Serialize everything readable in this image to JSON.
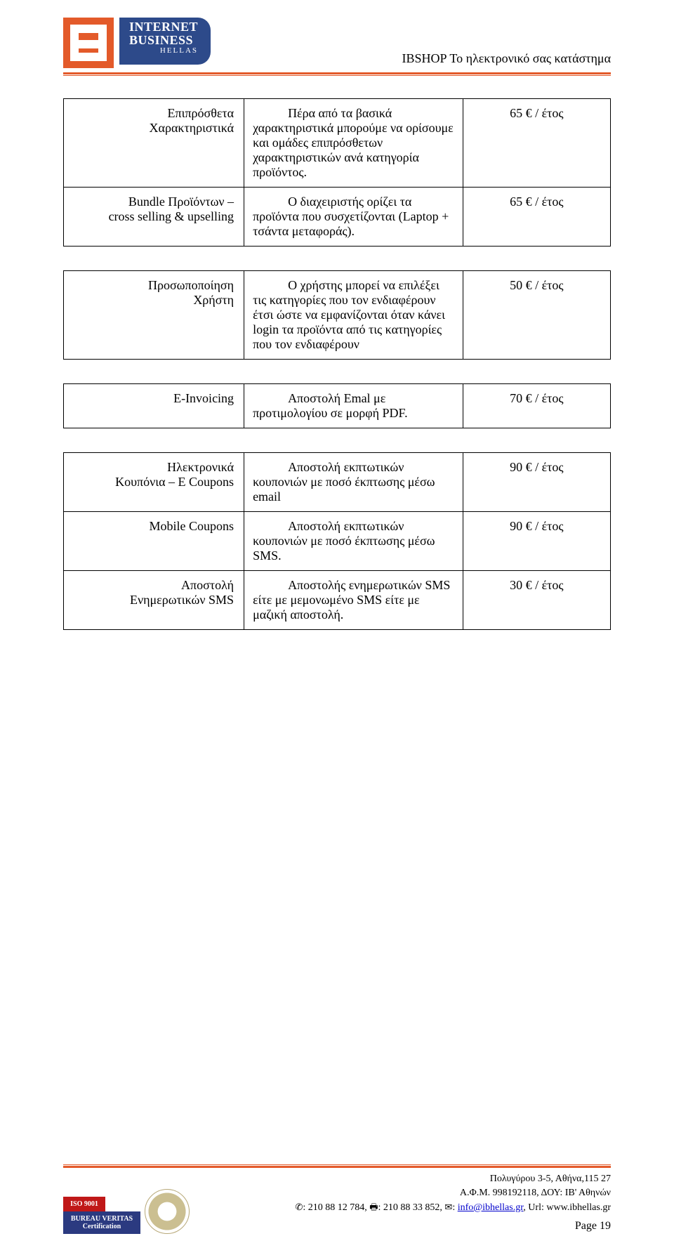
{
  "doc_title": "IBSHOP Το ηλεκτρονικό σας κατάστημα",
  "logo": {
    "line1": "INTERNET",
    "line2": "BUSINESS",
    "line3": "HELLAS"
  },
  "tables": [
    {
      "rows": [
        {
          "c1": "Επιπρόσθετα\nΧαρακτηριστικά",
          "c2": "Πέρα από τα βασικά χαρακτηριστικά μπορούμε να ορίσουμε και ομάδες επιπρόσθετων χαρακτηριστικών ανά κατηγορία προϊόντος.",
          "c3": "65 € / έτος"
        },
        {
          "c1": "Bundle Προϊόντων –\ncross selling & upselling",
          "c2": "Ο διαχειριστής ορίζει τα προϊόντα που συσχετίζονται (Laptop + τσάντα μεταφοράς).",
          "c3": "65 € / έτος"
        }
      ]
    },
    {
      "rows": [
        {
          "c1": "Προσωποποίηση\nΧρήστη",
          "c2": "Ο χρήστης μπορεί να επιλέξει τις κατηγορίες που τον ενδιαφέρουν έτσι ώστε να εμφανίζονται όταν κάνει login τα προϊόντα από τις κατηγορίες που τον ενδιαφέρουν",
          "c3": "50 € / έτος"
        }
      ]
    },
    {
      "rows": [
        {
          "c1": "E-Invoicing",
          "c2": "Αποστολή Εmal με προτιμολογίου σε μορφή PDF.",
          "c3": "70 € / έτος"
        }
      ]
    },
    {
      "rows": [
        {
          "c1": "Ηλεκτρονικά\nΚουπόνια – E Coupons",
          "c2": "Αποστολή εκπτωτικών κουπονιών με ποσό έκπτωσης μέσω email",
          "c3": "90 € / έτος"
        },
        {
          "c1": "Mobile Coupons",
          "c2": "Αποστολή εκπτωτικών κουπονιών με ποσό έκπτωσης μέσω SMS.",
          "c3": "90 € / έτος"
        },
        {
          "c1": "Αποστολή\nΕνημερωτικών SMS",
          "c2": "Αποστολής ενημερωτικών SMS είτε με μεμονωμένο SMS είτε με μαζική αποστολή.",
          "c3": "30 € / έτος"
        }
      ]
    }
  ],
  "footer": {
    "address": "Πολυγύρου 3-5, Αθήνα,115 27",
    "tax": "Α.Φ.Μ. 998192118, ΔΟΥ: ΙΒ' Αθηνών",
    "phone_label": "✆: ",
    "phone": "210 88 12 784",
    "fax_label": "🖷: ",
    "fax": "210 88 33 852",
    "email_label": "✉: ",
    "email": "info@ibhellas.gr",
    "url_label": "Url: ",
    "url": "www.ibhellas.gr",
    "page": "Page 19",
    "iso": "ISO 9001",
    "bv": "BUREAU VERITAS\nCertification"
  }
}
